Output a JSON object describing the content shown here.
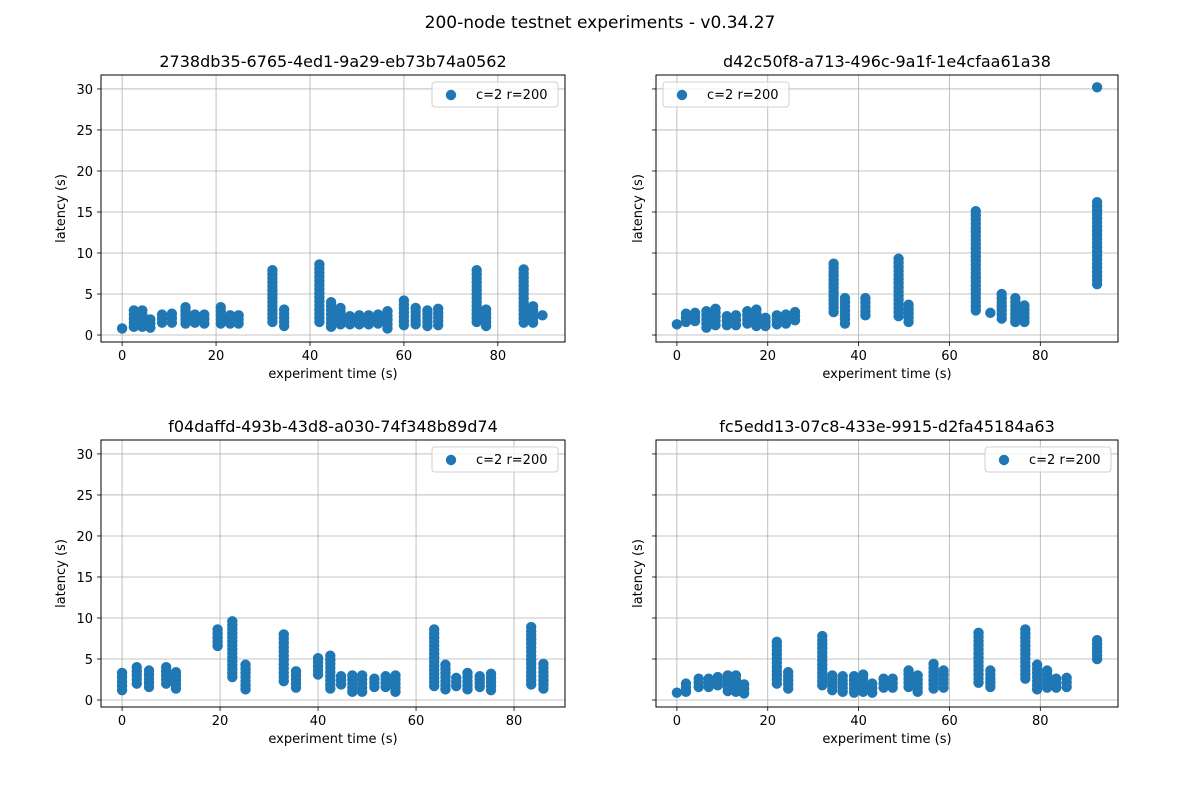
{
  "suptitle": "200-node testnet experiments - v0.34.27",
  "chart_data": [
    {
      "type": "scatter",
      "title": "2738db35-6765-4ed1-9a29-eb73b74a0562",
      "xlabel": "experiment time (s)",
      "ylabel": "latency (s)",
      "xlim": [
        -4.5,
        94.3
      ],
      "ylim": [
        -0.85,
        31.7
      ],
      "xticks": [
        0,
        20,
        40,
        60,
        80
      ],
      "yticks": [
        0,
        5,
        10,
        15,
        20,
        25,
        30
      ],
      "show_ytick_labels": true,
      "grid": true,
      "legend": {
        "label": "c=2 r=200",
        "placement": "upper right"
      },
      "color": "#1f77b4",
      "columns_note": "each column: [x, lowest latency, highest latency], points about 0.5 s apart",
      "columns": [
        [
          0,
          0.8,
          0.8
        ],
        [
          2.5,
          1.0,
          3.0
        ],
        [
          4.3,
          1.0,
          3.0
        ],
        [
          6,
          0.9,
          1.9
        ],
        [
          8.5,
          1.5,
          2.5
        ],
        [
          10.6,
          1.5,
          2.6
        ],
        [
          13.5,
          1.4,
          3.4
        ],
        [
          15.5,
          1.5,
          2.5
        ],
        [
          17.5,
          1.4,
          2.5
        ],
        [
          21,
          1.4,
          3.4
        ],
        [
          23,
          1.4,
          2.4
        ],
        [
          24.8,
          1.4,
          2.4
        ],
        [
          32,
          1.6,
          7.9
        ],
        [
          34.5,
          1.1,
          3.1
        ],
        [
          42,
          1.6,
          8.6
        ],
        [
          44.5,
          1.0,
          4.0
        ],
        [
          46.5,
          1.3,
          3.3
        ],
        [
          48.5,
          1.3,
          2.3
        ],
        [
          50.5,
          1.3,
          2.4
        ],
        [
          52.5,
          1.3,
          2.4
        ],
        [
          54.5,
          1.4,
          2.5
        ],
        [
          56.5,
          0.8,
          2.9
        ],
        [
          60,
          1.2,
          4.2
        ],
        [
          62.5,
          1.3,
          3.3
        ],
        [
          65,
          1.1,
          3.0
        ],
        [
          67.3,
          1.2,
          3.2
        ],
        [
          75.5,
          1.6,
          7.9
        ],
        [
          77.5,
          1.1,
          3.1
        ],
        [
          85.5,
          1.5,
          8.0
        ],
        [
          87.5,
          1.5,
          3.5
        ],
        [
          89.5,
          2.4,
          2.4
        ]
      ]
    },
    {
      "type": "scatter",
      "title": "d42c50f8-a713-496c-9a1f-1e4cfaa61a38",
      "xlabel": "experiment time (s)",
      "ylabel": "latency (s)",
      "xlim": [
        -4.6,
        97.1
      ],
      "ylim": [
        -0.85,
        31.7
      ],
      "xticks": [
        0,
        20,
        40,
        60,
        80
      ],
      "yticks": [
        0,
        5,
        10,
        15,
        20,
        25,
        30
      ],
      "show_ytick_labels": false,
      "grid": true,
      "legend": {
        "label": "c=2 r=200",
        "placement": "upper left"
      },
      "color": "#1f77b4",
      "columns": [
        [
          0,
          1.3,
          1.3
        ],
        [
          2,
          1.6,
          2.6
        ],
        [
          4,
          1.7,
          2.7
        ],
        [
          6.5,
          0.9,
          2.9
        ],
        [
          8.5,
          1.2,
          3.2
        ],
        [
          11,
          1.2,
          2.3
        ],
        [
          13,
          1.2,
          2.4
        ],
        [
          15.5,
          1.4,
          2.9
        ],
        [
          17.5,
          1.1,
          3.1
        ],
        [
          19.5,
          1.1,
          2.1
        ],
        [
          22,
          1.3,
          2.4
        ],
        [
          24,
          1.4,
          2.5
        ],
        [
          26,
          1.8,
          2.8
        ],
        [
          34.5,
          2.8,
          8.7
        ],
        [
          37,
          1.4,
          4.5
        ],
        [
          41.5,
          2.4,
          4.5
        ],
        [
          48.8,
          2.3,
          9.3
        ],
        [
          51,
          1.6,
          3.7
        ],
        [
          65.8,
          3.0,
          15.1
        ],
        [
          69,
          2.7,
          2.7
        ],
        [
          71.5,
          2.0,
          5.0
        ],
        [
          74.5,
          1.6,
          4.5
        ],
        [
          76.5,
          1.6,
          3.6
        ],
        [
          92.5,
          6.2,
          16.2
        ],
        [
          92.5,
          30.2,
          30.2
        ]
      ]
    },
    {
      "type": "scatter",
      "title": "f04daffd-493b-43d8-a030-74f348b89d74",
      "xlabel": "experiment time (s)",
      "ylabel": "latency (s)",
      "xlim": [
        -4.3,
        90.4
      ],
      "ylim": [
        -0.85,
        31.7
      ],
      "xticks": [
        0,
        20,
        40,
        60,
        80
      ],
      "yticks": [
        0,
        5,
        10,
        15,
        20,
        25,
        30
      ],
      "show_ytick_labels": true,
      "grid": true,
      "legend": {
        "label": "c=2 r=200",
        "placement": "upper right"
      },
      "color": "#1f77b4",
      "columns": [
        [
          0,
          1.2,
          3.3
        ],
        [
          3,
          2.0,
          4.0
        ],
        [
          5.5,
          1.6,
          3.6
        ],
        [
          9,
          2.0,
          4.0
        ],
        [
          11,
          1.4,
          3.4
        ],
        [
          19.5,
          6.6,
          8.6
        ],
        [
          22.5,
          2.8,
          9.6
        ],
        [
          25.2,
          1.3,
          4.3
        ],
        [
          33,
          2.3,
          8.0
        ],
        [
          35.5,
          1.5,
          3.5
        ],
        [
          40,
          3.1,
          5.1
        ],
        [
          42.5,
          1.4,
          5.4
        ],
        [
          44.7,
          1.9,
          2.9
        ],
        [
          47,
          1.0,
          3.0
        ],
        [
          49,
          1.0,
          3.0
        ],
        [
          51.5,
          1.6,
          2.6
        ],
        [
          53.8,
          1.6,
          2.9
        ],
        [
          55.8,
          1.0,
          3.0
        ],
        [
          63.7,
          1.7,
          8.6
        ],
        [
          66,
          1.3,
          4.3
        ],
        [
          68.2,
          1.7,
          2.7
        ],
        [
          70.5,
          1.3,
          3.3
        ],
        [
          73,
          1.6,
          2.9
        ],
        [
          75.3,
          1.2,
          3.2
        ],
        [
          83.5,
          1.9,
          8.9
        ],
        [
          86,
          1.4,
          4.4
        ]
      ]
    },
    {
      "type": "scatter",
      "title": "fc5edd13-07c8-433e-9915-d2fa45184a63",
      "xlabel": "experiment time (s)",
      "ylabel": "latency (s)",
      "xlim": [
        -4.6,
        97.1
      ],
      "ylim": [
        -0.85,
        31.7
      ],
      "xticks": [
        0,
        20,
        40,
        60,
        80
      ],
      "yticks": [
        0,
        5,
        10,
        15,
        20,
        25,
        30
      ],
      "show_ytick_labels": false,
      "grid": true,
      "legend": {
        "label": "c=2 r=200",
        "placement": "upper right"
      },
      "color": "#1f77b4",
      "columns": [
        [
          0,
          0.9,
          0.9
        ],
        [
          2,
          1.0,
          2.0
        ],
        [
          4.8,
          1.6,
          2.6
        ],
        [
          7,
          1.6,
          2.6
        ],
        [
          9,
          1.8,
          2.8
        ],
        [
          11.2,
          1.1,
          3.0
        ],
        [
          13,
          1.0,
          3.0
        ],
        [
          14.8,
          0.8,
          1.9
        ],
        [
          22,
          2.0,
          7.1
        ],
        [
          24.5,
          1.4,
          3.4
        ],
        [
          32,
          1.8,
          7.8
        ],
        [
          34.2,
          1.2,
          3.0
        ],
        [
          36.5,
          1.0,
          2.9
        ],
        [
          39,
          0.9,
          2.9
        ],
        [
          41,
          1.0,
          3.1
        ],
        [
          43,
          0.9,
          2.0
        ],
        [
          45.5,
          1.5,
          2.6
        ],
        [
          47.5,
          1.5,
          2.6
        ],
        [
          51,
          1.6,
          3.6
        ],
        [
          53,
          1.0,
          3.0
        ],
        [
          56.5,
          1.4,
          4.4
        ],
        [
          58.7,
          1.5,
          3.6
        ],
        [
          66.4,
          2.1,
          8.2
        ],
        [
          69,
          1.6,
          3.6
        ],
        [
          76.7,
          2.6,
          8.6
        ],
        [
          79.3,
          1.3,
          4.3
        ],
        [
          81.5,
          1.5,
          3.6
        ],
        [
          83.5,
          1.5,
          2.6
        ],
        [
          85.8,
          1.6,
          2.7
        ],
        [
          92.5,
          5.0,
          7.3
        ]
      ]
    }
  ]
}
